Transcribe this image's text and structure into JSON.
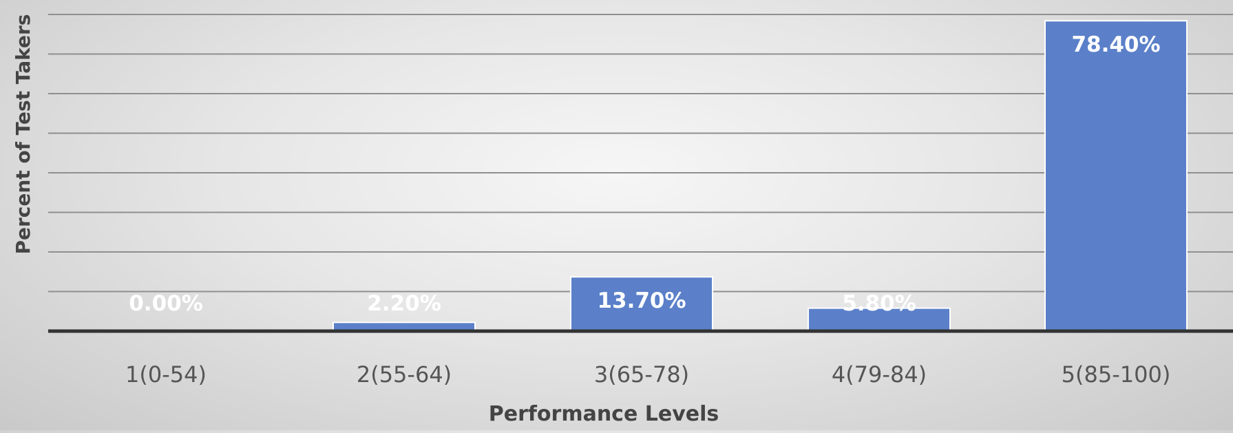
{
  "chart_data": {
    "type": "bar",
    "title": "",
    "xlabel": "Performance Levels",
    "ylabel": "Percent of Test Takers",
    "categories": [
      "1(0-54)",
      "2(55-64)",
      "3(65-78)",
      "4(79-84)",
      "5(85-100)"
    ],
    "values": [
      0.0,
      2.2,
      13.7,
      5.8,
      78.4
    ],
    "data_labels": [
      "0.00%",
      "2.20%",
      "13.70%",
      "5.80%",
      "78.40%"
    ],
    "ylim": [
      0,
      80
    ],
    "grid": true,
    "legend": "none",
    "colors": {
      "bar": "#5b80c9",
      "bar_outline": "#ffffff",
      "label": "#ffffff",
      "axis_text": "#555555",
      "axis_title": "#444444",
      "gridline": "#8f8f8f",
      "baseline": "#333333"
    }
  }
}
